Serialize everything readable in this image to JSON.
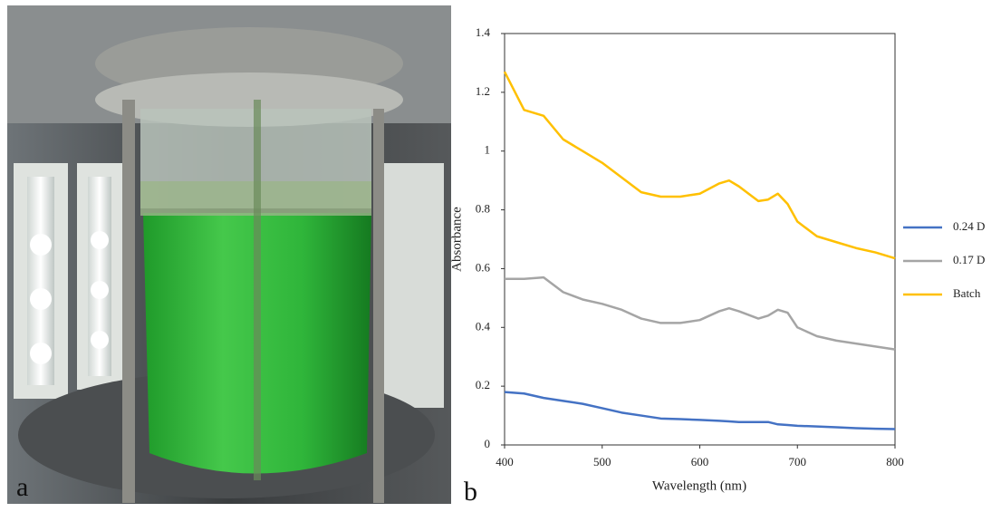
{
  "panel_labels": [
    "a",
    "b"
  ],
  "chart_data": {
    "type": "line",
    "x_label": "Wavelength (nm)",
    "y_label": "Absorbance",
    "x": [
      400,
      420,
      440,
      460,
      480,
      500,
      520,
      540,
      560,
      580,
      600,
      620,
      630,
      640,
      660,
      670,
      680,
      690,
      700,
      720,
      740,
      760,
      780,
      800
    ],
    "series": [
      {
        "name": "0.24 D",
        "color": "#4472c4",
        "values": [
          0.18,
          0.175,
          0.16,
          0.15,
          0.14,
          0.125,
          0.11,
          0.1,
          0.09,
          0.088,
          0.085,
          0.082,
          0.08,
          0.078,
          0.078,
          0.078,
          0.07,
          0.068,
          0.065,
          0.063,
          0.06,
          0.057,
          0.055,
          0.054
        ]
      },
      {
        "name": "0.17 D",
        "color": "#a5a5a5",
        "values": [
          0.565,
          0.565,
          0.57,
          0.52,
          0.495,
          0.48,
          0.46,
          0.43,
          0.415,
          0.415,
          0.425,
          0.455,
          0.465,
          0.455,
          0.43,
          0.44,
          0.46,
          0.45,
          0.4,
          0.37,
          0.355,
          0.345,
          0.335,
          0.325
        ]
      },
      {
        "name": "Batch",
        "color": "#ffc000",
        "values": [
          1.27,
          1.14,
          1.12,
          1.04,
          1.0,
          0.96,
          0.91,
          0.86,
          0.845,
          0.845,
          0.855,
          0.89,
          0.9,
          0.88,
          0.83,
          0.835,
          0.855,
          0.82,
          0.76,
          0.71,
          0.69,
          0.67,
          0.655,
          0.635
        ]
      }
    ],
    "xlim": [
      400,
      800
    ],
    "xticks": [
      400,
      500,
      600,
      700,
      800
    ],
    "ylim": [
      0,
      1.4
    ],
    "yticks": [
      0,
      0.2,
      0.4,
      0.6,
      0.8,
      1,
      1.2,
      1.4
    ],
    "grid": false,
    "legend": "right"
  }
}
